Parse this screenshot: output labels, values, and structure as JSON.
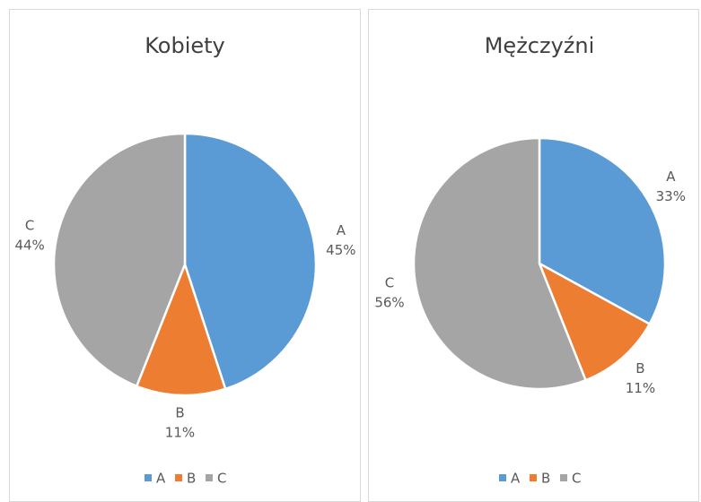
{
  "chart_data": [
    {
      "type": "pie",
      "title": "Kobiety",
      "categories": [
        "A",
        "B",
        "C"
      ],
      "values": [
        45,
        11,
        44
      ],
      "value_labels": [
        "45%",
        "11%",
        "44%"
      ],
      "colors": [
        "#5b9bd5",
        "#ed7d31",
        "#a5a5a5"
      ]
    },
    {
      "type": "pie",
      "title": "Mężczyźni",
      "categories": [
        "A",
        "B",
        "C"
      ],
      "values": [
        33,
        11,
        56
      ],
      "value_labels": [
        "33%",
        "11%",
        "56%"
      ],
      "colors": [
        "#5b9bd5",
        "#ed7d31",
        "#a5a5a5"
      ]
    }
  ]
}
